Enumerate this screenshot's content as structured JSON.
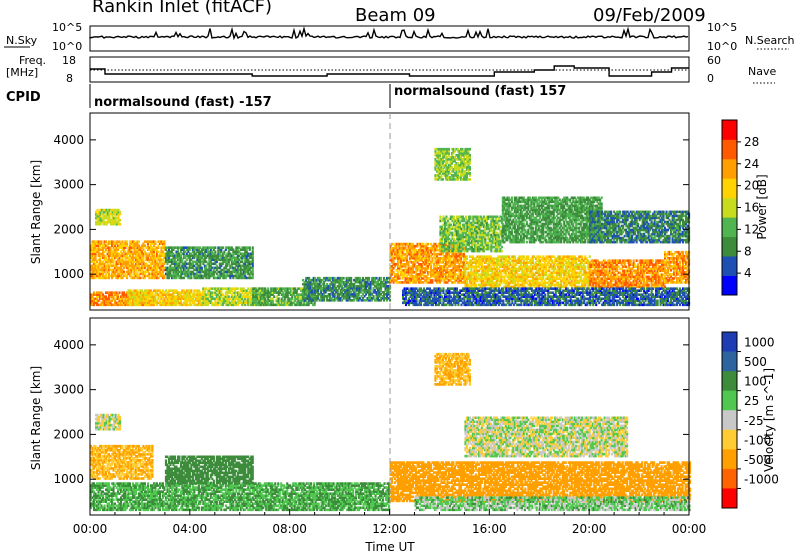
{
  "header": {
    "station": "Rankin Inlet (fitACF)",
    "beam": "Beam 09",
    "date": "09/Feb/2009"
  },
  "noise_panel": {
    "left_label": "N.Sky",
    "left_ticks": [
      "10^5",
      "10^0"
    ],
    "right_label": "N.Search",
    "right_ticks": [
      "10^5",
      "10^0"
    ]
  },
  "freq_panel": {
    "left_label_line1": "Freq.",
    "left_label_line2": "[MHz]",
    "left_ticks": [
      "18",
      "8"
    ],
    "right_label": "Nave",
    "right_ticks": [
      "60",
      "0"
    ]
  },
  "cpid": {
    "label": "CPID",
    "segments": [
      "normalsound (fast) -157",
      "normalsound (fast) 157"
    ]
  },
  "x_axis": {
    "title": "Time UT",
    "tick_labels": [
      "00:00",
      "04:00",
      "08:00",
      "12:00",
      "16:00",
      "20:00",
      "00:00"
    ]
  },
  "colors": {
    "power": [
      "#0000ff",
      "#1e50b4",
      "#3c8c3c",
      "#50b450",
      "#c8dc1e",
      "#ffd200",
      "#ffa000",
      "#ff5a00",
      "#ff0000"
    ],
    "velocity": [
      "#ff0000",
      "#ff6400",
      "#ffa000",
      "#ffcc33",
      "#c8c8c8",
      "#50c850",
      "#3c8c3c",
      "#2d64a0",
      "#1e3cb4"
    ]
  },
  "chart_data": [
    {
      "type": "heatmap",
      "title": "",
      "xlabel": "",
      "ylabel": "Slant Range [km]",
      "xlim": [
        0,
        24
      ],
      "ylim": [
        200,
        4600
      ],
      "yticks": [
        1000,
        2000,
        3000,
        4000
      ],
      "colorbar": {
        "label": "Power [dB]",
        "ticks": [
          4,
          8,
          12,
          16,
          20,
          24,
          28
        ],
        "range": [
          0,
          32
        ]
      },
      "regions": [
        {
          "t": [
            0.0,
            3.0
          ],
          "r": [
            900,
            1750
          ],
          "value": 25
        },
        {
          "t": [
            0.0,
            2.5
          ],
          "r": [
            300,
            600
          ],
          "value": 27
        },
        {
          "t": [
            1.5,
            4.5
          ],
          "r": [
            300,
            650
          ],
          "value": 22
        },
        {
          "t": [
            4.5,
            7.0
          ],
          "r": [
            300,
            700
          ],
          "value": 18
        },
        {
          "t": [
            6.5,
            9.0
          ],
          "r": [
            300,
            700
          ],
          "value": 13
        },
        {
          "t": [
            8.5,
            12.0
          ],
          "r": [
            400,
            900
          ],
          "value": 10
        },
        {
          "t": [
            3.0,
            6.5
          ],
          "r": [
            900,
            1600
          ],
          "value": 11
        },
        {
          "t": [
            0.2,
            1.2
          ],
          "r": [
            2100,
            2450
          ],
          "value": 18
        },
        {
          "t": [
            13.8,
            15.2
          ],
          "r": [
            3100,
            3800
          ],
          "value": 16
        },
        {
          "t": [
            12.0,
            15.0
          ],
          "r": [
            800,
            1700
          ],
          "value": 26
        },
        {
          "t": [
            15.0,
            20.0
          ],
          "r": [
            700,
            1400
          ],
          "value": 22
        },
        {
          "t": [
            20.0,
            23.0
          ],
          "r": [
            700,
            1300
          ],
          "value": 27
        },
        {
          "t": [
            23.0,
            24.0
          ],
          "r": [
            800,
            1500
          ],
          "value": 26
        },
        {
          "t": [
            14.0,
            16.5
          ],
          "r": [
            1500,
            2300
          ],
          "value": 15
        },
        {
          "t": [
            16.5,
            20.5
          ],
          "r": [
            1700,
            2700
          ],
          "value": 12
        },
        {
          "t": [
            20.0,
            24.0
          ],
          "r": [
            1700,
            2400
          ],
          "value": 9
        },
        {
          "t": [
            12.5,
            24.0
          ],
          "r": [
            300,
            700
          ],
          "value": 7
        }
      ]
    },
    {
      "type": "heatmap",
      "title": "",
      "xlabel": "Time UT",
      "ylabel": "Slant Range [km]",
      "xlim": [
        0,
        24
      ],
      "ylim": [
        200,
        4600
      ],
      "yticks": [
        1000,
        2000,
        3000,
        4000
      ],
      "colorbar": {
        "label": "Velocity [m s^-1]",
        "ticks": [
          1000,
          500,
          100,
          25,
          -25,
          -100,
          -500,
          -1000
        ]
      },
      "regions": [
        {
          "t": [
            0.0,
            2.5
          ],
          "r": [
            1000,
            1750
          ],
          "value": -100
        },
        {
          "t": [
            0.0,
            12.0
          ],
          "r": [
            300,
            900
          ],
          "value": 100
        },
        {
          "t": [
            3.0,
            6.5
          ],
          "r": [
            900,
            1500
          ],
          "value": 300
        },
        {
          "t": [
            0.2,
            1.2
          ],
          "r": [
            2100,
            2450
          ],
          "value": 0
        },
        {
          "t": [
            12.0,
            24.0
          ],
          "r": [
            500,
            1400
          ],
          "value": -300
        },
        {
          "t": [
            15.0,
            21.5
          ],
          "r": [
            1500,
            2400
          ],
          "value": 0
        },
        {
          "t": [
            13.8,
            15.2
          ],
          "r": [
            3100,
            3800
          ],
          "value": -100
        },
        {
          "t": [
            13.0,
            24.0
          ],
          "r": [
            300,
            600
          ],
          "value": 50
        }
      ]
    }
  ]
}
